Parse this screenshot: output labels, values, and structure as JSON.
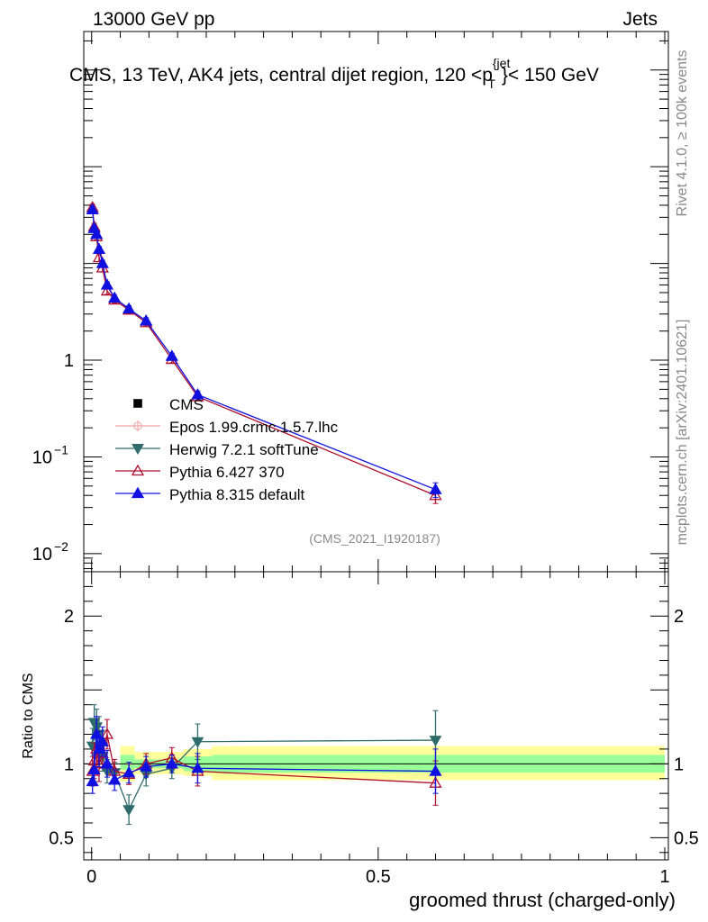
{
  "header": {
    "left": "13000 GeV pp",
    "right": "Jets",
    "title_main": "CMS, 13 TeV, AK4 jets, central dijet region, 120 <p",
    "title_sup": "{jet",
    "title_sub": "T",
    "title_end": "}< 150 GeV"
  },
  "side": {
    "rivet": "Rivet 4.1.0, ≥ 100k events",
    "mcplots": "mcplots.cern.ch [arXiv:2401.10621]"
  },
  "watermark": "(CMS_2021_I1920187)",
  "axes": {
    "xlabel": "groomed thrust (charged-only)",
    "ratio_ylabel": "Ratio to CMS",
    "x_ticks": [
      {
        "v": 0,
        "label": "0"
      },
      {
        "v": 0.5,
        "label": "0.5"
      },
      {
        "v": 1,
        "label": "1"
      }
    ],
    "main_y_ticks": [
      {
        "v": 1,
        "base": "1",
        "exp": ""
      },
      {
        "v": 0.1,
        "base": "10",
        "exp": "−1"
      },
      {
        "v": 0.01,
        "base": "10",
        "exp": "−2"
      }
    ],
    "ratio_y_ticks": [
      {
        "v": 2,
        "label": "2"
      },
      {
        "v": 1,
        "label": "1"
      },
      {
        "v": 0.5,
        "label": "0.5"
      }
    ]
  },
  "legend": [
    {
      "name": "CMS",
      "color": "#000000",
      "marker": "square"
    },
    {
      "name": "Epos 1.99.crmc.1.5.7.lhc",
      "color": "#f0a0a0",
      "marker": "cross"
    },
    {
      "name": "Herwig 7.2.1 softTune",
      "color": "#2f6b6b",
      "marker": "tri-down"
    },
    {
      "name": "Pythia 6.427 370",
      "color": "#b01030",
      "marker": "tri-up-open"
    },
    {
      "name": "Pythia 8.315 default",
      "color": "#1010e0",
      "marker": "tri-up"
    }
  ],
  "chart_data": {
    "type": "line",
    "xlim": [
      -0.02,
      1.0
    ],
    "main": {
      "yscale": "log",
      "ylim": [
        0.0065,
        2500
      ],
      "series": [
        {
          "name": "Pythia 6.427 370",
          "x": [
            0.0015,
            0.0045,
            0.0085,
            0.013,
            0.019,
            0.027,
            0.04,
            0.065,
            0.095,
            0.14,
            0.185,
            0.6
          ],
          "y": [
            38,
            24,
            19,
            11.5,
            9,
            5.2,
            4.2,
            3.3,
            2.45,
            1.02,
            0.42,
            0.04
          ],
          "yerr": [
            3,
            2,
            1.5,
            1,
            0.8,
            0.4,
            0.3,
            0.25,
            0.2,
            0.08,
            0.04,
            0.007
          ]
        },
        {
          "name": "Pythia 8.315 default",
          "x": [
            0.0015,
            0.0045,
            0.0085,
            0.013,
            0.019,
            0.027,
            0.04,
            0.065,
            0.095,
            0.14,
            0.185,
            0.6
          ],
          "y": [
            36,
            23,
            20,
            14,
            10,
            6,
            4.4,
            3.4,
            2.55,
            1.1,
            0.44,
            0.046
          ],
          "yerr": [
            3,
            2,
            1.5,
            1,
            0.8,
            0.45,
            0.3,
            0.25,
            0.2,
            0.08,
            0.04,
            0.008
          ]
        }
      ]
    },
    "ratio": {
      "ylim": [
        0.35,
        2.3
      ],
      "reference": 1,
      "band_inner": [
        {
          "x0": 0.05,
          "x1": 0.075,
          "lo": 0.96,
          "hi": 1.06
        },
        {
          "x0": 0.075,
          "x1": 0.16,
          "lo": 0.97,
          "hi": 1.03
        },
        {
          "x0": 0.16,
          "x1": 0.21,
          "lo": 0.95,
          "hi": 1.05
        },
        {
          "x0": 0.21,
          "x1": 1.0,
          "lo": 0.94,
          "hi": 1.06
        }
      ],
      "band_outer": [
        {
          "x0": 0.05,
          "x1": 0.075,
          "lo": 0.88,
          "hi": 1.12
        },
        {
          "x0": 0.075,
          "x1": 0.16,
          "lo": 0.93,
          "hi": 1.08
        },
        {
          "x0": 0.16,
          "x1": 0.21,
          "lo": 0.92,
          "hi": 1.1
        },
        {
          "x0": 0.21,
          "x1": 1.0,
          "lo": 0.89,
          "hi": 1.12
        }
      ],
      "series": [
        {
          "name": "Herwig 7.2.1 softTune",
          "x": [
            0.0015,
            0.0045,
            0.0085,
            0.013,
            0.019,
            0.027,
            0.04,
            0.065,
            0.095,
            0.14,
            0.185,
            0.6
          ],
          "y": [
            1.12,
            1.28,
            1.25,
            1.2,
            1.05,
            0.95,
            0.94,
            0.69,
            0.93,
            0.97,
            1.15,
            1.16
          ],
          "yerr": [
            0.12,
            0.12,
            0.12,
            0.12,
            0.1,
            0.08,
            0.07,
            0.1,
            0.08,
            0.07,
            0.12,
            0.2
          ]
        },
        {
          "name": "Pythia 6.427 370",
          "x": [
            0.0015,
            0.0045,
            0.0085,
            0.013,
            0.019,
            0.027,
            0.04,
            0.065,
            0.095,
            0.14,
            0.185,
            0.6
          ],
          "y": [
            0.95,
            1.02,
            1.1,
            1.0,
            1.07,
            1.2,
            0.95,
            0.93,
            1.0,
            1.04,
            0.95,
            0.87
          ],
          "yerr": [
            0.1,
            0.12,
            0.12,
            0.12,
            0.1,
            0.1,
            0.08,
            0.07,
            0.07,
            0.07,
            0.1,
            0.15
          ]
        },
        {
          "name": "Pythia 8.315 default",
          "x": [
            0.0015,
            0.0045,
            0.0085,
            0.013,
            0.019,
            0.027,
            0.04,
            0.065,
            0.095,
            0.14,
            0.185,
            0.6
          ],
          "y": [
            0.88,
            0.96,
            1.2,
            1.1,
            1.15,
            1.0,
            0.89,
            0.94,
            0.98,
            1.0,
            0.97,
            0.95
          ],
          "yerr": [
            0.08,
            0.1,
            0.12,
            0.12,
            0.1,
            0.09,
            0.07,
            0.07,
            0.07,
            0.06,
            0.1,
            0.15
          ]
        }
      ]
    }
  }
}
